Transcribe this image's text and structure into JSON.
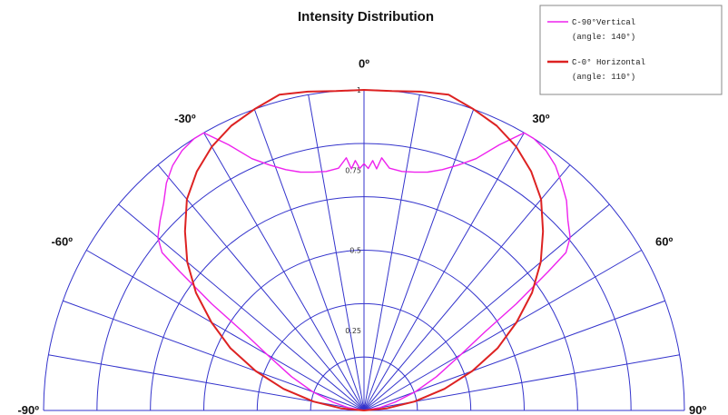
{
  "chart_data": {
    "type": "polar",
    "title": "Intensity Distribution",
    "angle_range": [
      -90,
      90
    ],
    "angle_labels": [
      {
        "angle": -90,
        "text": "-90º"
      },
      {
        "angle": -60,
        "text": "-60º"
      },
      {
        "angle": -30,
        "text": "-30º"
      },
      {
        "angle": 0,
        "text": "0º"
      },
      {
        "angle": 30,
        "text": "30º"
      },
      {
        "angle": 60,
        "text": "60º"
      },
      {
        "angle": 90,
        "text": "90º"
      }
    ],
    "radial_labels": [
      {
        "value": 0.25,
        "text": "0.25"
      },
      {
        "value": 0.5,
        "text": "0.5"
      },
      {
        "value": 0.75,
        "text": "0.75"
      },
      {
        "value": 1,
        "text": "1"
      }
    ],
    "grid_color": "#3333cc",
    "legend_position": "top-right",
    "series": [
      {
        "name": "C-90°Vertical",
        "sub": "(angle:  140°)",
        "color": "#ee22ee",
        "points": [
          [
            -90,
            0
          ],
          [
            -80,
            0.05
          ],
          [
            -75,
            0.1
          ],
          [
            -70,
            0.17
          ],
          [
            -65,
            0.25
          ],
          [
            -60,
            0.35
          ],
          [
            -57,
            0.45
          ],
          [
            -55,
            0.58
          ],
          [
            -53,
            0.72
          ],
          [
            -52,
            0.8
          ],
          [
            -50,
            0.84
          ],
          [
            -47,
            0.87
          ],
          [
            -44,
            0.9
          ],
          [
            -41,
            0.94
          ],
          [
            -38,
            0.97
          ],
          [
            -35,
            0.99
          ],
          [
            -32,
            1.0
          ],
          [
            -30,
            1.0
          ],
          [
            -27,
            0.93
          ],
          [
            -24,
            0.86
          ],
          [
            -21,
            0.82
          ],
          [
            -18,
            0.79
          ],
          [
            -15,
            0.77
          ],
          [
            -12,
            0.76
          ],
          [
            -9,
            0.755
          ],
          [
            -6,
            0.76
          ],
          [
            -4,
            0.79
          ],
          [
            -3,
            0.755
          ],
          [
            -2,
            0.78
          ],
          [
            -1,
            0.755
          ],
          [
            0,
            0.77
          ],
          [
            1,
            0.755
          ],
          [
            2,
            0.78
          ],
          [
            3,
            0.755
          ],
          [
            4,
            0.79
          ],
          [
            6,
            0.76
          ],
          [
            9,
            0.755
          ],
          [
            12,
            0.76
          ],
          [
            15,
            0.77
          ],
          [
            18,
            0.79
          ],
          [
            21,
            0.82
          ],
          [
            24,
            0.86
          ],
          [
            27,
            0.93
          ],
          [
            30,
            1.0
          ],
          [
            32,
            1.0
          ],
          [
            35,
            0.99
          ],
          [
            38,
            0.97
          ],
          [
            41,
            0.94
          ],
          [
            44,
            0.91
          ],
          [
            47,
            0.87
          ],
          [
            50,
            0.84
          ],
          [
            52,
            0.8
          ],
          [
            53,
            0.72
          ],
          [
            55,
            0.58
          ],
          [
            57,
            0.45
          ],
          [
            60,
            0.35
          ],
          [
            65,
            0.25
          ],
          [
            70,
            0.17
          ],
          [
            75,
            0.1
          ],
          [
            80,
            0.05
          ],
          [
            90,
            0
          ]
        ]
      },
      {
        "name": "C-0° Horizontal",
        "sub": "(angle:  110°)",
        "color": "#dd2222",
        "points": [
          [
            -90,
            0
          ],
          [
            -85,
            0.07
          ],
          [
            -80,
            0.16
          ],
          [
            -75,
            0.26
          ],
          [
            -70,
            0.36
          ],
          [
            -65,
            0.46
          ],
          [
            -60,
            0.55
          ],
          [
            -55,
            0.64
          ],
          [
            -50,
            0.72
          ],
          [
            -45,
            0.79
          ],
          [
            -40,
            0.86
          ],
          [
            -35,
            0.91
          ],
          [
            -30,
            0.95
          ],
          [
            -25,
            0.98
          ],
          [
            -20,
            1.0
          ],
          [
            -15,
            1.02
          ],
          [
            -10,
            1.01
          ],
          [
            -5,
            1.0
          ],
          [
            0,
            1.0
          ],
          [
            5,
            1.0
          ],
          [
            10,
            1.01
          ],
          [
            15,
            1.02
          ],
          [
            20,
            1.0
          ],
          [
            25,
            0.98
          ],
          [
            30,
            0.95
          ],
          [
            35,
            0.91
          ],
          [
            40,
            0.86
          ],
          [
            45,
            0.79
          ],
          [
            50,
            0.72
          ],
          [
            55,
            0.64
          ],
          [
            60,
            0.55
          ],
          [
            65,
            0.46
          ],
          [
            70,
            0.36
          ],
          [
            75,
            0.26
          ],
          [
            80,
            0.16
          ],
          [
            85,
            0.07
          ],
          [
            90,
            0
          ]
        ]
      }
    ]
  }
}
